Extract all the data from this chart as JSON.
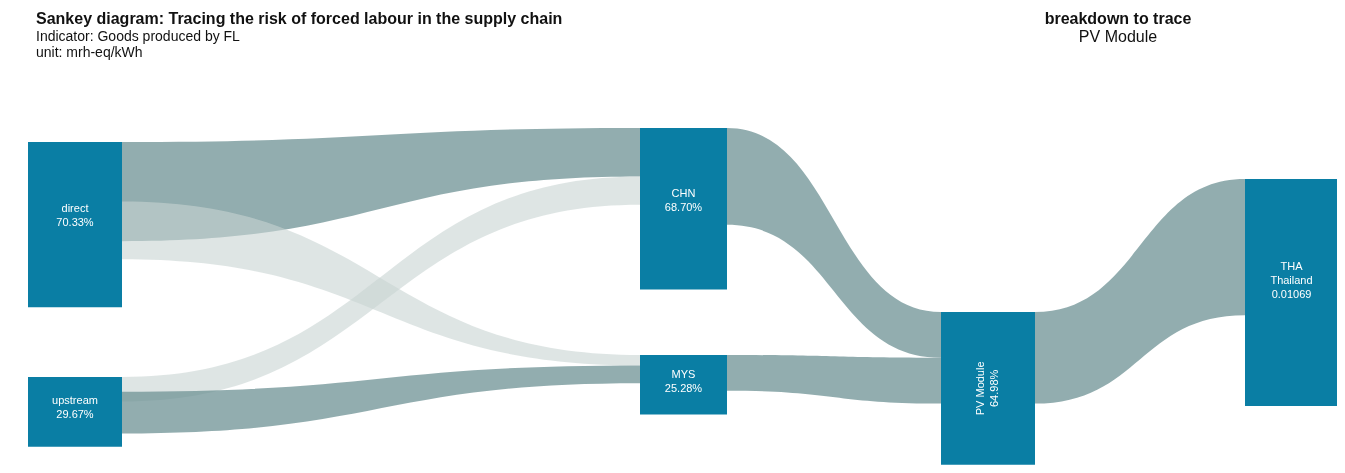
{
  "chart_data": {
    "type": "other",
    "title": "Sankey diagram: Tracing the risk of forced labour in the supply chain",
    "subtitle": "Indicator: Goods produced by FL",
    "annotations": [
      "unit: mrh-eq/kWh",
      "breakdown to trace",
      "PV Module"
    ],
    "categories": [
      "direct",
      "upstream",
      "CHN",
      "MYS",
      "PV Module",
      "THA Thailand"
    ],
    "values": [
      70.33,
      29.67,
      68.7,
      25.28,
      64.98,
      0.01069
    ],
    "value_labels": [
      "70.33%",
      "29.67%",
      "68.70%",
      "25.28%",
      "64.98%",
      "0.01069"
    ],
    "color": "#0a7ea4"
  }
}
